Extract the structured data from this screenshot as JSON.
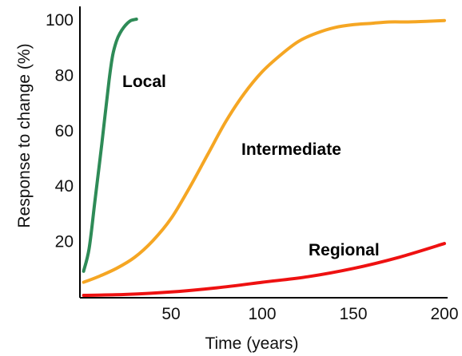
{
  "chart_data": {
    "type": "line",
    "title": "",
    "xlabel": "Time (years)",
    "ylabel": "Response to change (%)",
    "xlim": [
      0,
      200
    ],
    "ylim": [
      0,
      100
    ],
    "xticks": [
      50,
      100,
      150,
      200
    ],
    "xtick_labels": [
      "50",
      "100",
      "150",
      "200"
    ],
    "yticks": [
      20,
      40,
      60,
      80,
      100
    ],
    "ytick_labels": [
      "20",
      "40",
      "60",
      "80",
      "100"
    ],
    "grid": false,
    "legend": "none",
    "series": [
      {
        "name": "Local",
        "color": "#2e8b57",
        "x": [
          2,
          5,
          8,
          12,
          16,
          18,
          20,
          22,
          24,
          26,
          28,
          31
        ],
        "y": [
          9,
          17,
          33,
          55,
          78,
          87,
          92,
          95,
          97,
          98.5,
          99.5,
          100
        ]
      },
      {
        "name": "Intermediate",
        "color": "#f5a623",
        "x": [
          2,
          10,
          20,
          30,
          40,
          50,
          60,
          70,
          80,
          90,
          100,
          110,
          120,
          130,
          140,
          150,
          160,
          170,
          180,
          190,
          200
        ],
        "y": [
          5,
          7,
          10,
          14,
          20,
          28,
          39,
          51,
          63,
          73,
          81,
          87,
          92,
          95,
          97,
          98,
          98.5,
          99,
          99,
          99.2,
          99.5
        ]
      },
      {
        "name": "Regional",
        "color": "#ee1111",
        "x": [
          2,
          25,
          50,
          75,
          100,
          125,
          150,
          175,
          200
        ],
        "y": [
          0.3,
          0.6,
          1.5,
          3,
          5,
          7,
          10,
          14,
          19
        ]
      }
    ]
  }
}
